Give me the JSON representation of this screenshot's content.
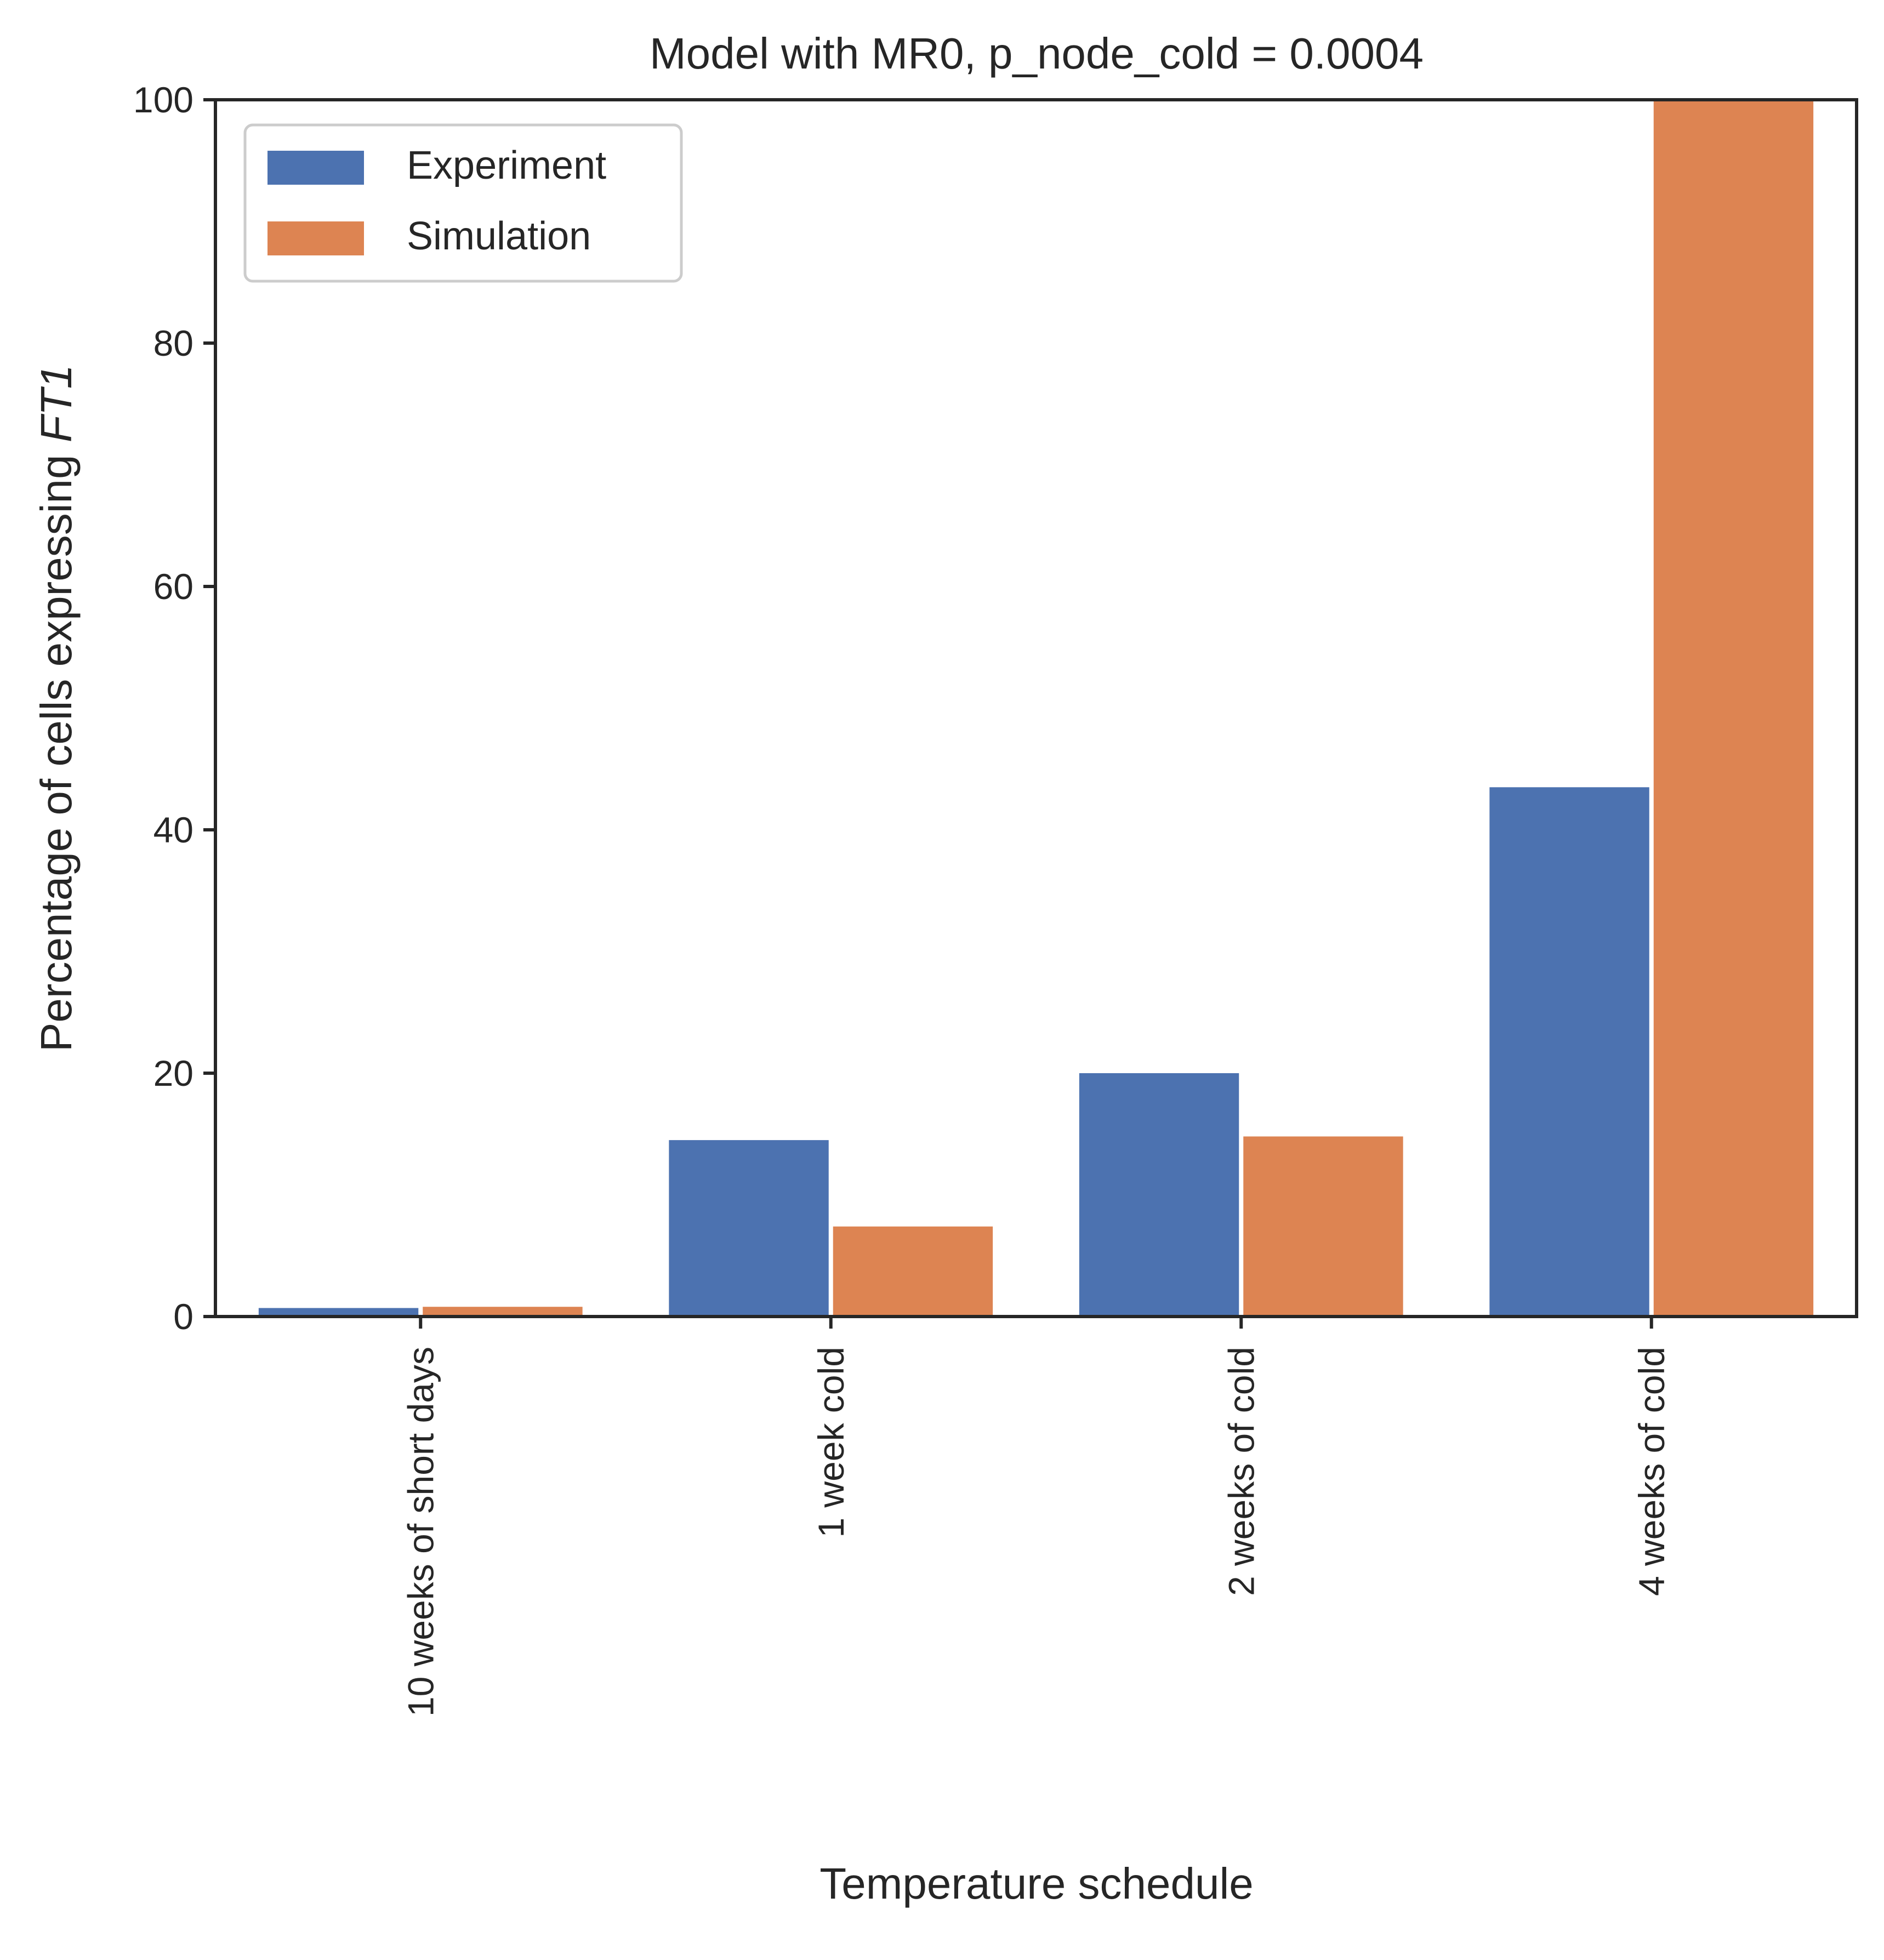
{
  "chart_data": {
    "type": "bar",
    "title": "Model with MR0, p_node_cold = 0.0004",
    "xlabel": "Temperature schedule",
    "ylabel": {
      "prefix": "Percentage of cells expressing ",
      "gene": "FT1"
    },
    "categories": [
      "10 weeks of short days",
      "1 week cold",
      "2 weeks of cold",
      "4 weeks of cold"
    ],
    "series": [
      {
        "name": "Experiment",
        "color": "#4c72b0",
        "values": [
          0.7,
          14.5,
          20.0,
          43.5
        ]
      },
      {
        "name": "Simulation",
        "color": "#dd8452",
        "values": [
          0.8,
          7.4,
          14.8,
          100.0
        ]
      }
    ],
    "ylim": [
      0,
      100
    ],
    "yticks": [
      0,
      20,
      40,
      60,
      80,
      100
    ],
    "grid": false,
    "legend_position": "upper left"
  }
}
